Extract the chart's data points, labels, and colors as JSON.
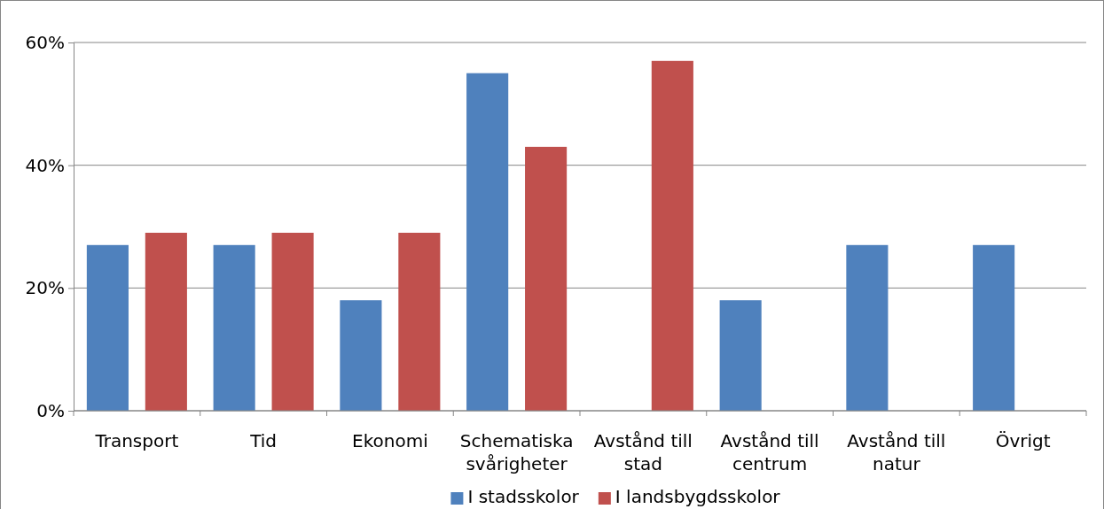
{
  "chart_data": {
    "type": "bar",
    "categories": [
      "Transport",
      "Tid",
      "Ekonomi",
      "Schematiska svårigheter",
      "Avstånd till stad",
      "Avstånd till centrum",
      "Avstånd till natur",
      "Övrigt"
    ],
    "series": [
      {
        "name": "I stadsskolor",
        "color": "#4f81bd",
        "values": [
          27,
          27,
          18,
          55,
          null,
          18,
          27,
          27
        ]
      },
      {
        "name": "I landsbygdsskolor",
        "color": "#c0504d",
        "values": [
          29,
          29,
          29,
          43,
          57,
          null,
          null,
          null
        ]
      }
    ],
    "ylim": [
      0,
      60
    ],
    "yticks": [
      {
        "value": 0,
        "label": "0%"
      },
      {
        "value": 20,
        "label": "20%"
      },
      {
        "value": 40,
        "label": "40%"
      },
      {
        "value": 60,
        "label": "60%"
      }
    ],
    "grid": "y",
    "legend": "bottom"
  }
}
